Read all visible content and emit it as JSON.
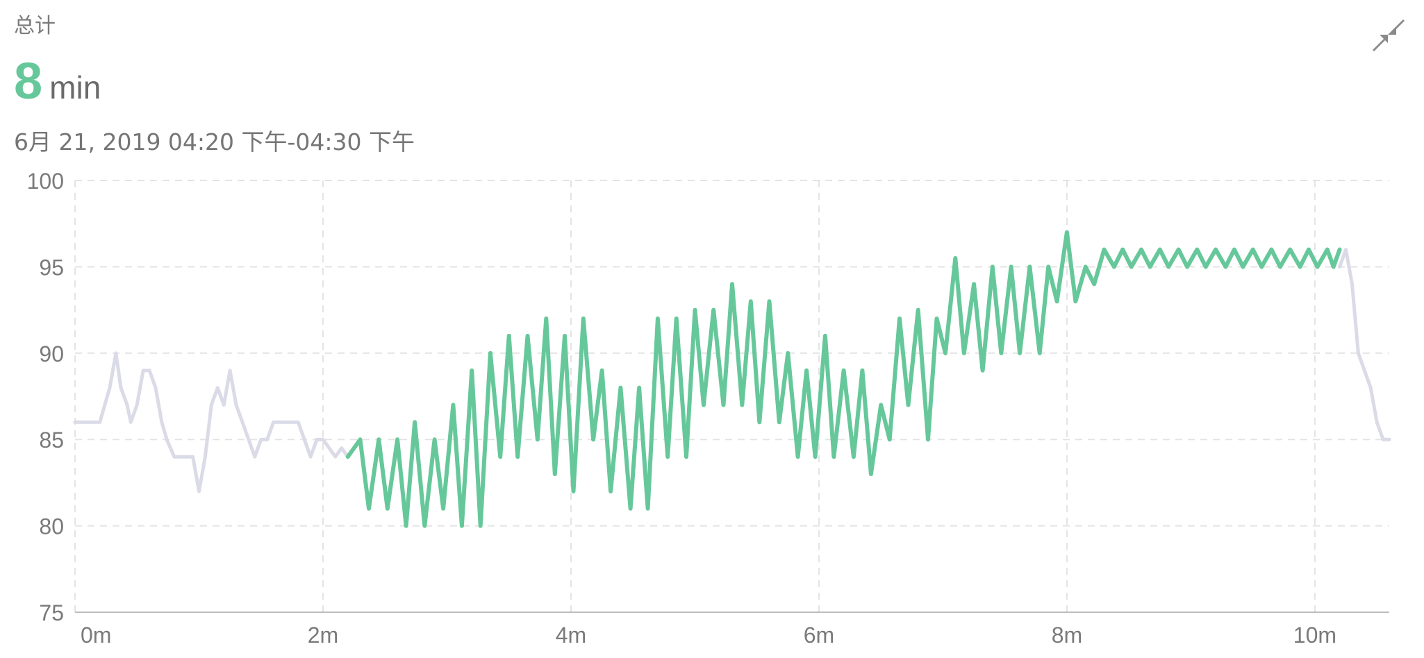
{
  "header": {
    "label": "总计",
    "value": "8",
    "unit": "min",
    "date_range": "6月 21, 2019 04:20 下午-04:30 下午"
  },
  "icons": {
    "collapse": "collapse-arrows-icon"
  },
  "colors": {
    "active_series": "#66c89a",
    "inactive_series": "#dadbe7",
    "grid": "#e3e3e3",
    "axis": "#bdbdbd",
    "tick_label": "#7a7a7a"
  },
  "chart_data": {
    "type": "line",
    "title": "",
    "xlabel": "",
    "ylabel": "",
    "x_unit": "minutes",
    "xlim": [
      0,
      10.6
    ],
    "ylim": [
      75,
      100
    ],
    "x_ticks": [
      0,
      2,
      4,
      6,
      8,
      10
    ],
    "x_tick_labels": [
      "0m",
      "2m",
      "4m",
      "6m",
      "8m",
      "10m"
    ],
    "y_ticks": [
      75,
      80,
      85,
      90,
      95,
      100
    ],
    "y_tick_labels": [
      "75",
      "80",
      "85",
      "90",
      "95",
      "100"
    ],
    "grid": true,
    "legend": "none",
    "series": [
      {
        "style": "inactive",
        "x": [
          0,
          0.2,
          0.28,
          0.33,
          0.37,
          0.42,
          0.45,
          0.5,
          0.55,
          0.6,
          0.65,
          0.7,
          0.74,
          0.8,
          0.85,
          0.9,
          0.95,
          1.0,
          1.05,
          1.1,
          1.15,
          1.2,
          1.25,
          1.3,
          1.35,
          1.4,
          1.45,
          1.5,
          1.55,
          1.6,
          1.65,
          1.7,
          1.75,
          1.8,
          1.85,
          1.9,
          1.95,
          2.0,
          2.05,
          2.1,
          2.15,
          2.2
        ],
        "y": [
          86,
          86,
          88,
          90,
          88,
          87,
          86,
          87,
          89,
          89,
          88,
          86,
          85,
          84,
          84,
          84,
          84,
          82,
          84,
          87,
          88,
          87,
          89,
          87,
          86,
          85,
          84,
          85,
          85,
          86,
          86,
          86,
          86,
          86,
          85,
          84,
          85,
          85,
          84.5,
          84,
          84.5,
          84
        ]
      },
      {
        "style": "active",
        "x": [
          2.2,
          2.3,
          2.37,
          2.45,
          2.52,
          2.6,
          2.67,
          2.74,
          2.82,
          2.9,
          2.97,
          3.05,
          3.12,
          3.2,
          3.27,
          3.35,
          3.43,
          3.5,
          3.57,
          3.65,
          3.73,
          3.8,
          3.87,
          3.95,
          4.02,
          4.1,
          4.18,
          4.25,
          4.32,
          4.4,
          4.48,
          4.55,
          4.62,
          4.7,
          4.78,
          4.85,
          4.93,
          5.0,
          5.07,
          5.15,
          5.23,
          5.3,
          5.38,
          5.45,
          5.52,
          5.6,
          5.68,
          5.75,
          5.83,
          5.9,
          5.97,
          6.05,
          6.12,
          6.2,
          6.28,
          6.35,
          6.42,
          6.5,
          6.57,
          6.65,
          6.72,
          6.8,
          6.88,
          6.95,
          7.02,
          7.1,
          7.17,
          7.25,
          7.32,
          7.4,
          7.47,
          7.55,
          7.62,
          7.7,
          7.78,
          7.85,
          7.92,
          8.0,
          8.07,
          8.15,
          8.22,
          8.3,
          8.38,
          8.45,
          8.52,
          8.6,
          8.67,
          8.75,
          8.82,
          8.9,
          8.97,
          9.05,
          9.12,
          9.2,
          9.28,
          9.35,
          9.42,
          9.5,
          9.57,
          9.65,
          9.72,
          9.8,
          9.88,
          9.95,
          10.02,
          10.1,
          10.15,
          10.2
        ],
        "y": [
          84,
          85,
          81,
          85,
          81,
          85,
          80,
          86,
          80,
          85,
          81,
          87,
          80,
          89,
          80,
          90,
          84,
          91,
          84,
          91,
          85,
          92,
          83,
          91,
          82,
          92,
          85,
          89,
          82,
          88,
          81,
          88,
          81,
          92,
          84,
          92,
          84,
          92.5,
          87,
          92.5,
          87,
          94,
          87,
          93,
          86,
          93,
          86,
          90,
          84,
          89,
          84,
          91,
          84,
          89,
          84,
          89,
          83,
          87,
          85,
          92,
          87,
          92.5,
          85,
          92,
          90,
          95.5,
          90,
          94,
          89,
          95,
          90,
          95,
          90,
          95,
          90,
          95,
          93,
          97,
          93,
          95,
          94,
          96,
          95,
          96,
          95,
          96,
          95,
          96,
          95,
          96,
          95,
          96,
          95,
          96,
          95,
          96,
          95,
          96,
          95,
          96,
          95,
          96,
          95,
          96,
          95,
          96,
          95,
          96
        ]
      },
      {
        "style": "inactive",
        "x": [
          10.2,
          10.25,
          10.3,
          10.35,
          10.4,
          10.45,
          10.5,
          10.55,
          10.6
        ],
        "y": [
          95,
          96,
          94,
          90,
          89,
          88,
          86,
          85,
          85
        ]
      }
    ]
  }
}
